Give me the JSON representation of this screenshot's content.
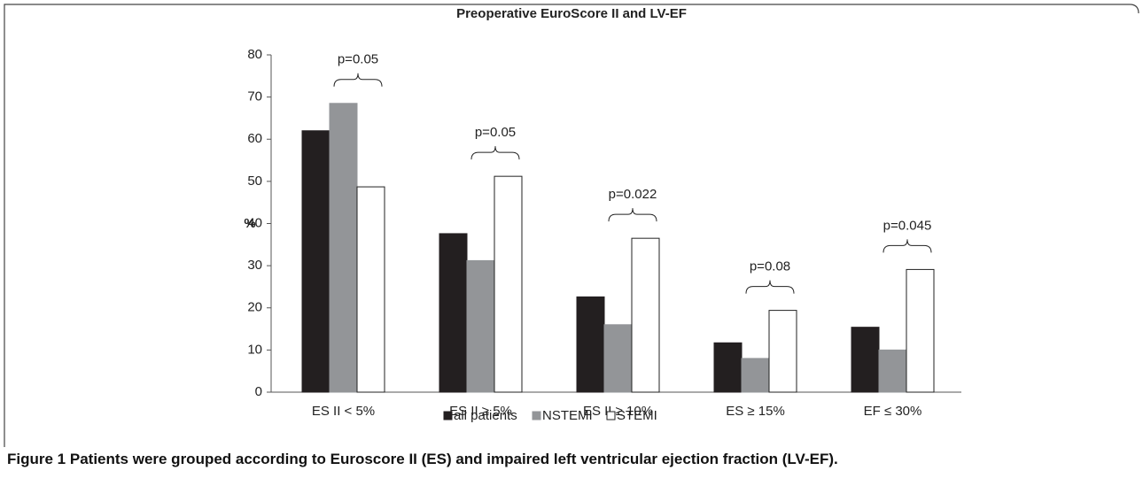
{
  "chart_data": {
    "type": "bar",
    "title": "Preoperative EuroScore II and LV-EF",
    "y_label": "%",
    "categories": [
      "ES II < 5%",
      "ES II ≥ 5%",
      "ES II ≥ 10%",
      "ES ≥ 15%",
      "EF  ≤ 30%"
    ],
    "series": [
      {
        "name": "all patients",
        "color": "#231f20",
        "values": [
          62,
          37.6,
          22.6,
          11.7,
          15.4
        ]
      },
      {
        "name": "NSTEMI",
        "color": "#939598",
        "values": [
          68.5,
          31.2,
          16,
          8,
          10
        ]
      },
      {
        "name": "STEMI",
        "color": "#ffffff",
        "values": [
          48.7,
          51.2,
          36.5,
          19.4,
          29.1
        ]
      }
    ],
    "annotations": [
      "p=0.05",
      "p=0.05",
      "p=0.022",
      "p=0.08",
      "p=0.045"
    ],
    "ylim": [
      0,
      80
    ],
    "yticks": [
      0,
      10,
      20,
      30,
      40,
      50,
      60,
      70,
      80
    ],
    "legend": "bottom"
  },
  "caption": {
    "label": "Figure 1",
    "text": "Patients were grouped according to Euroscore II (ES) and impaired left ventricular ejection fraction (LV-EF)."
  }
}
